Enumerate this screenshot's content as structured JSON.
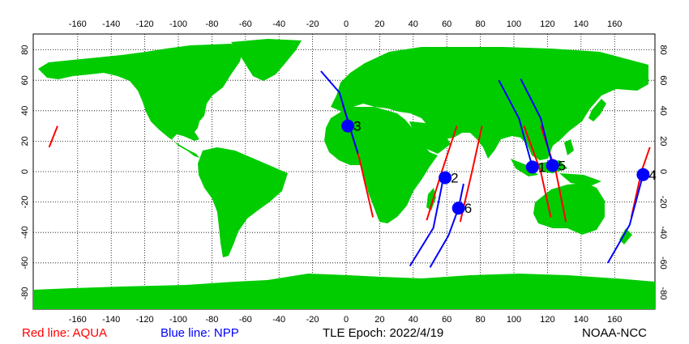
{
  "map": {
    "lon_ticks": [
      -160,
      -140,
      -120,
      -100,
      -80,
      -60,
      -40,
      -20,
      0,
      20,
      40,
      60,
      80,
      100,
      120,
      140,
      160
    ],
    "lat_ticks": [
      80,
      60,
      40,
      20,
      0,
      -20,
      -40,
      -60,
      -80
    ],
    "colors": {
      "land": "#00cc00",
      "ocean": "#ffffff",
      "grid": "#000000",
      "aqua": "#ff0000",
      "npp": "#0000ff"
    }
  },
  "markers": [
    {
      "label": "1",
      "lon": 111,
      "lat": 3
    },
    {
      "label": "2",
      "lon": 59,
      "lat": -4
    },
    {
      "label": "3",
      "lon": 1,
      "lat": 30
    },
    {
      "label": "4",
      "lon": 177,
      "lat": -2
    },
    {
      "label": "5",
      "lon": 123,
      "lat": 4
    },
    {
      "label": "6",
      "lon": 67,
      "lat": -24
    }
  ],
  "legend": {
    "red_label": "Red line: AQUA",
    "blue_label": "Blue line: NPP",
    "epoch": "TLE Epoch: 2022/4/19",
    "credit": "NOAA-NCC"
  }
}
